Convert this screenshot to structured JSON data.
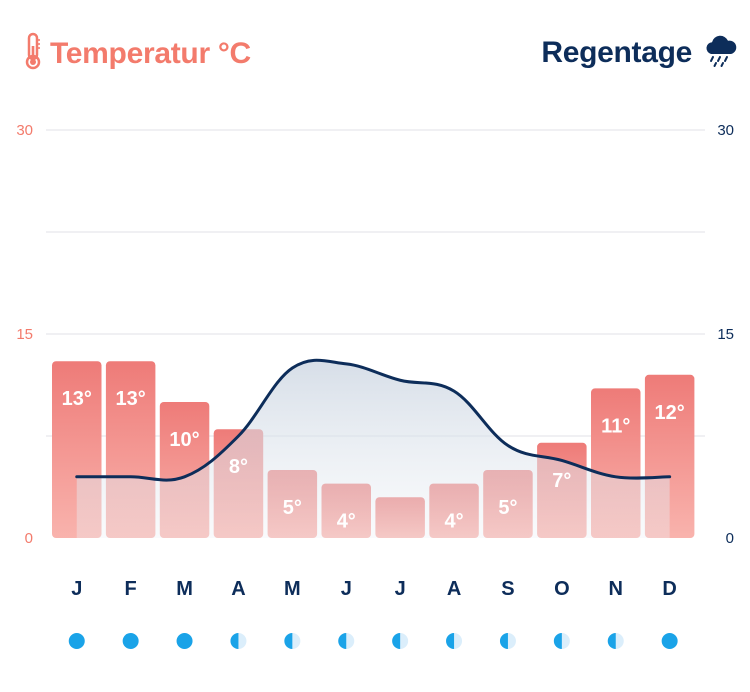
{
  "header": {
    "temp_title": "Temperatur °C",
    "rain_title": "Regentage",
    "temp_icon": "thermometer-icon",
    "rain_icon": "rain-cloud-icon"
  },
  "colors": {
    "temp": "#f37b6c",
    "temp_bar_top": "#ee7b78",
    "temp_bar_bottom": "#f9b3ad",
    "rain_line": "#0d2d5a",
    "moon": "#1aa3e8",
    "grid": "#e6e8ec"
  },
  "chart_data": {
    "type": "bar",
    "categories": [
      "J",
      "F",
      "M",
      "A",
      "M",
      "J",
      "J",
      "A",
      "S",
      "O",
      "N",
      "D"
    ],
    "left_axis": {
      "ticks": [
        "30",
        "15",
        "0"
      ],
      "range": [
        0,
        30
      ]
    },
    "right_axis": {
      "ticks": [
        "30",
        "15",
        "0"
      ],
      "range": [
        0,
        30
      ]
    },
    "series": [
      {
        "type": "bar",
        "axis": "left",
        "values": [
          13,
          13,
          10,
          8,
          5,
          4,
          3,
          4,
          5,
          7,
          11,
          12
        ],
        "labels": [
          "13°",
          "13°",
          "10°",
          "8°",
          "5°",
          "4°",
          "",
          "4°",
          "5°",
          "7°",
          "11°",
          "12°"
        ]
      },
      {
        "type": "area",
        "axis": "right",
        "values": [
          4.5,
          4.5,
          4.5,
          7.5,
          12.5,
          12.8,
          11.6,
          10.8,
          6.8,
          5.7,
          4.5,
          4.5
        ]
      }
    ],
    "moon_phases": [
      "full",
      "full",
      "full",
      "half",
      "half",
      "half",
      "half",
      "half",
      "half",
      "half",
      "half",
      "full"
    ],
    "grid": true
  }
}
